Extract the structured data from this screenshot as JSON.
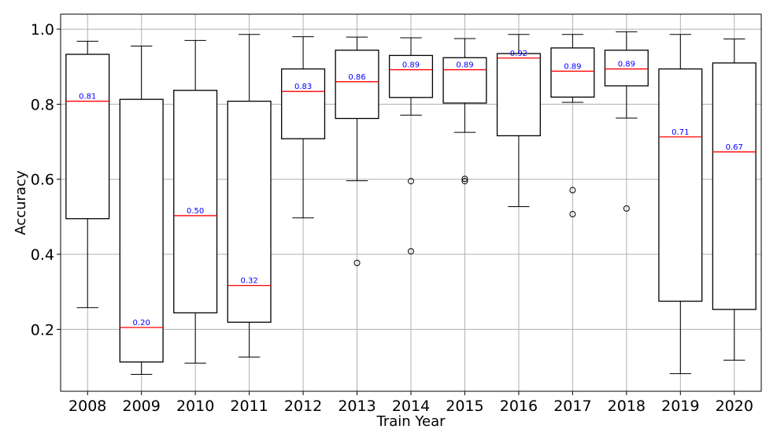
{
  "chart_data": {
    "type": "box",
    "xlabel": "Train Year",
    "ylabel": "Accuracy",
    "ylim": [
      0.035,
      1.04
    ],
    "yticks": [
      0.2,
      0.4,
      0.6,
      0.8,
      1.0
    ],
    "grid": true,
    "median_color": "#ff0000",
    "median_label_color": "#0000ff",
    "box_color": "#000000",
    "categories": [
      "2008",
      "2009",
      "2010",
      "2011",
      "2012",
      "2013",
      "2014",
      "2015",
      "2016",
      "2017",
      "2018",
      "2019",
      "2020"
    ],
    "boxes": [
      {
        "year": "2008",
        "whisker_low": 0.258,
        "q1": 0.495,
        "median": 0.808,
        "q3": 0.933,
        "whisker_high": 0.968,
        "outliers": [],
        "median_label": "0.81"
      },
      {
        "year": "2009",
        "whisker_low": 0.08,
        "q1": 0.113,
        "median": 0.205,
        "q3": 0.813,
        "whisker_high": 0.955,
        "outliers": [],
        "median_label": "0.20"
      },
      {
        "year": "2010",
        "whisker_low": 0.11,
        "q1": 0.244,
        "median": 0.503,
        "q3": 0.837,
        "whisker_high": 0.97,
        "outliers": [],
        "median_label": "0.50"
      },
      {
        "year": "2011",
        "whisker_low": 0.126,
        "q1": 0.219,
        "median": 0.317,
        "q3": 0.808,
        "whisker_high": 0.986,
        "outliers": [],
        "median_label": "0.32"
      },
      {
        "year": "2012",
        "whisker_low": 0.497,
        "q1": 0.708,
        "median": 0.834,
        "q3": 0.894,
        "whisker_high": 0.98,
        "outliers": [],
        "median_label": "0.83"
      },
      {
        "year": "2013",
        "whisker_low": 0.596,
        "q1": 0.762,
        "median": 0.86,
        "q3": 0.944,
        "whisker_high": 0.979,
        "outliers": [
          0.377
        ],
        "median_label": "0.86"
      },
      {
        "year": "2014",
        "whisker_low": 0.771,
        "q1": 0.818,
        "median": 0.892,
        "q3": 0.93,
        "whisker_high": 0.977,
        "outliers": [
          0.595,
          0.408
        ],
        "median_label": "0.89"
      },
      {
        "year": "2015",
        "whisker_low": 0.725,
        "q1": 0.803,
        "median": 0.892,
        "q3": 0.924,
        "whisker_high": 0.975,
        "outliers": [
          0.601,
          0.595
        ],
        "median_label": "0.89"
      },
      {
        "year": "2016",
        "whisker_low": 0.527,
        "q1": 0.716,
        "median": 0.923,
        "q3": 0.935,
        "whisker_high": 0.986,
        "outliers": [],
        "median_label": "0.92"
      },
      {
        "year": "2017",
        "whisker_low": 0.805,
        "q1": 0.819,
        "median": 0.888,
        "q3": 0.95,
        "whisker_high": 0.986,
        "outliers": [
          0.571,
          0.507
        ],
        "median_label": "0.89"
      },
      {
        "year": "2018",
        "whisker_low": 0.763,
        "q1": 0.849,
        "median": 0.894,
        "q3": 0.944,
        "whisker_high": 0.993,
        "outliers": [
          0.522
        ],
        "median_label": "0.89"
      },
      {
        "year": "2019",
        "whisker_low": 0.082,
        "q1": 0.275,
        "median": 0.713,
        "q3": 0.894,
        "whisker_high": 0.986,
        "outliers": [],
        "median_label": "0.71"
      },
      {
        "year": "2020",
        "whisker_low": 0.118,
        "q1": 0.253,
        "median": 0.673,
        "q3": 0.91,
        "whisker_high": 0.974,
        "outliers": [],
        "median_label": "0.67"
      }
    ]
  }
}
